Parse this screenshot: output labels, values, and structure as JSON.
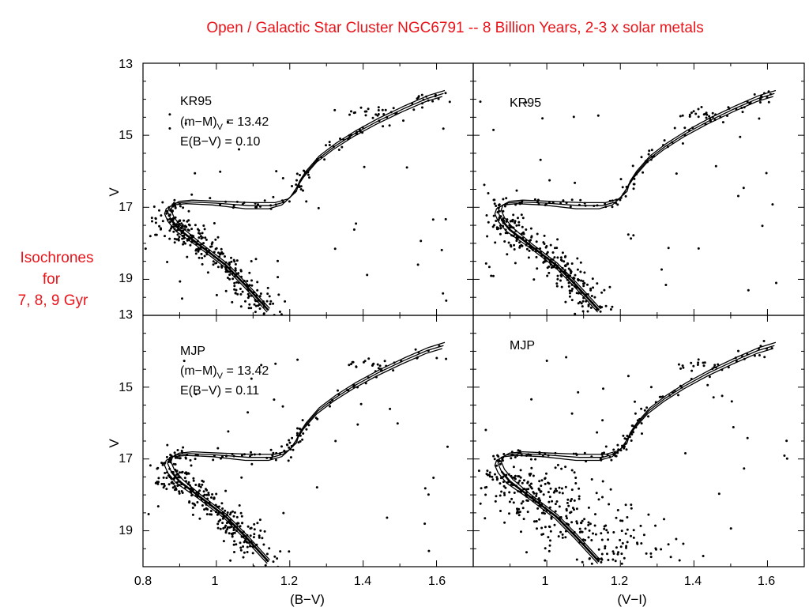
{
  "figure": {
    "title": "Open / Galactic Star Cluster NGC6791 -- 8 Billion Years,  2-3 x solar metals",
    "side_note": [
      "Isochrones",
      "for",
      "7, 8, 9 Gyr"
    ]
  },
  "chart_data": [
    {
      "type": "scatter",
      "panel": "top-left",
      "label": "KR95",
      "annotations": [
        "(m−M)",
        "V",
        " = 13.42",
        "E(B−V) = 0.10"
      ],
      "xlim": [
        0.8,
        1.68
      ],
      "ylim": [
        20.0,
        13.0
      ],
      "ylabel": "V",
      "yticks": [
        "13",
        "15",
        "17",
        "19"
      ],
      "isochrones": [
        7,
        8,
        9
      ]
    },
    {
      "type": "scatter",
      "panel": "top-right",
      "label": "KR95",
      "annotations": [],
      "xlim": [
        0.78,
        1.7
      ],
      "ylim": [
        20.0,
        13.0
      ],
      "isochrones": [
        7,
        8,
        9
      ]
    },
    {
      "type": "scatter",
      "panel": "bottom-left",
      "label": "MJP",
      "annotations": [
        "(m−M)",
        "V",
        " = 13.42",
        "E(B−V) = 0.11"
      ],
      "xlim": [
        0.8,
        1.68
      ],
      "ylim": [
        20.0,
        13.0
      ],
      "xlabel": "(B−V)",
      "ylabel": "V",
      "xticks": [
        "0.8",
        "1",
        "1.2",
        "1.4",
        "1.6"
      ],
      "yticks": [
        "13",
        "15",
        "17",
        "19"
      ],
      "isochrones": [
        7,
        8,
        9
      ]
    },
    {
      "type": "scatter",
      "panel": "bottom-right",
      "label": "MJP",
      "annotations": [],
      "xlim": [
        0.78,
        1.7
      ],
      "ylim": [
        20.0,
        13.0
      ],
      "xlabel": "(V−I)",
      "xticks": [
        "1",
        "1.2",
        "1.4",
        "1.6"
      ],
      "isochrones": [
        7,
        8,
        9
      ]
    }
  ]
}
